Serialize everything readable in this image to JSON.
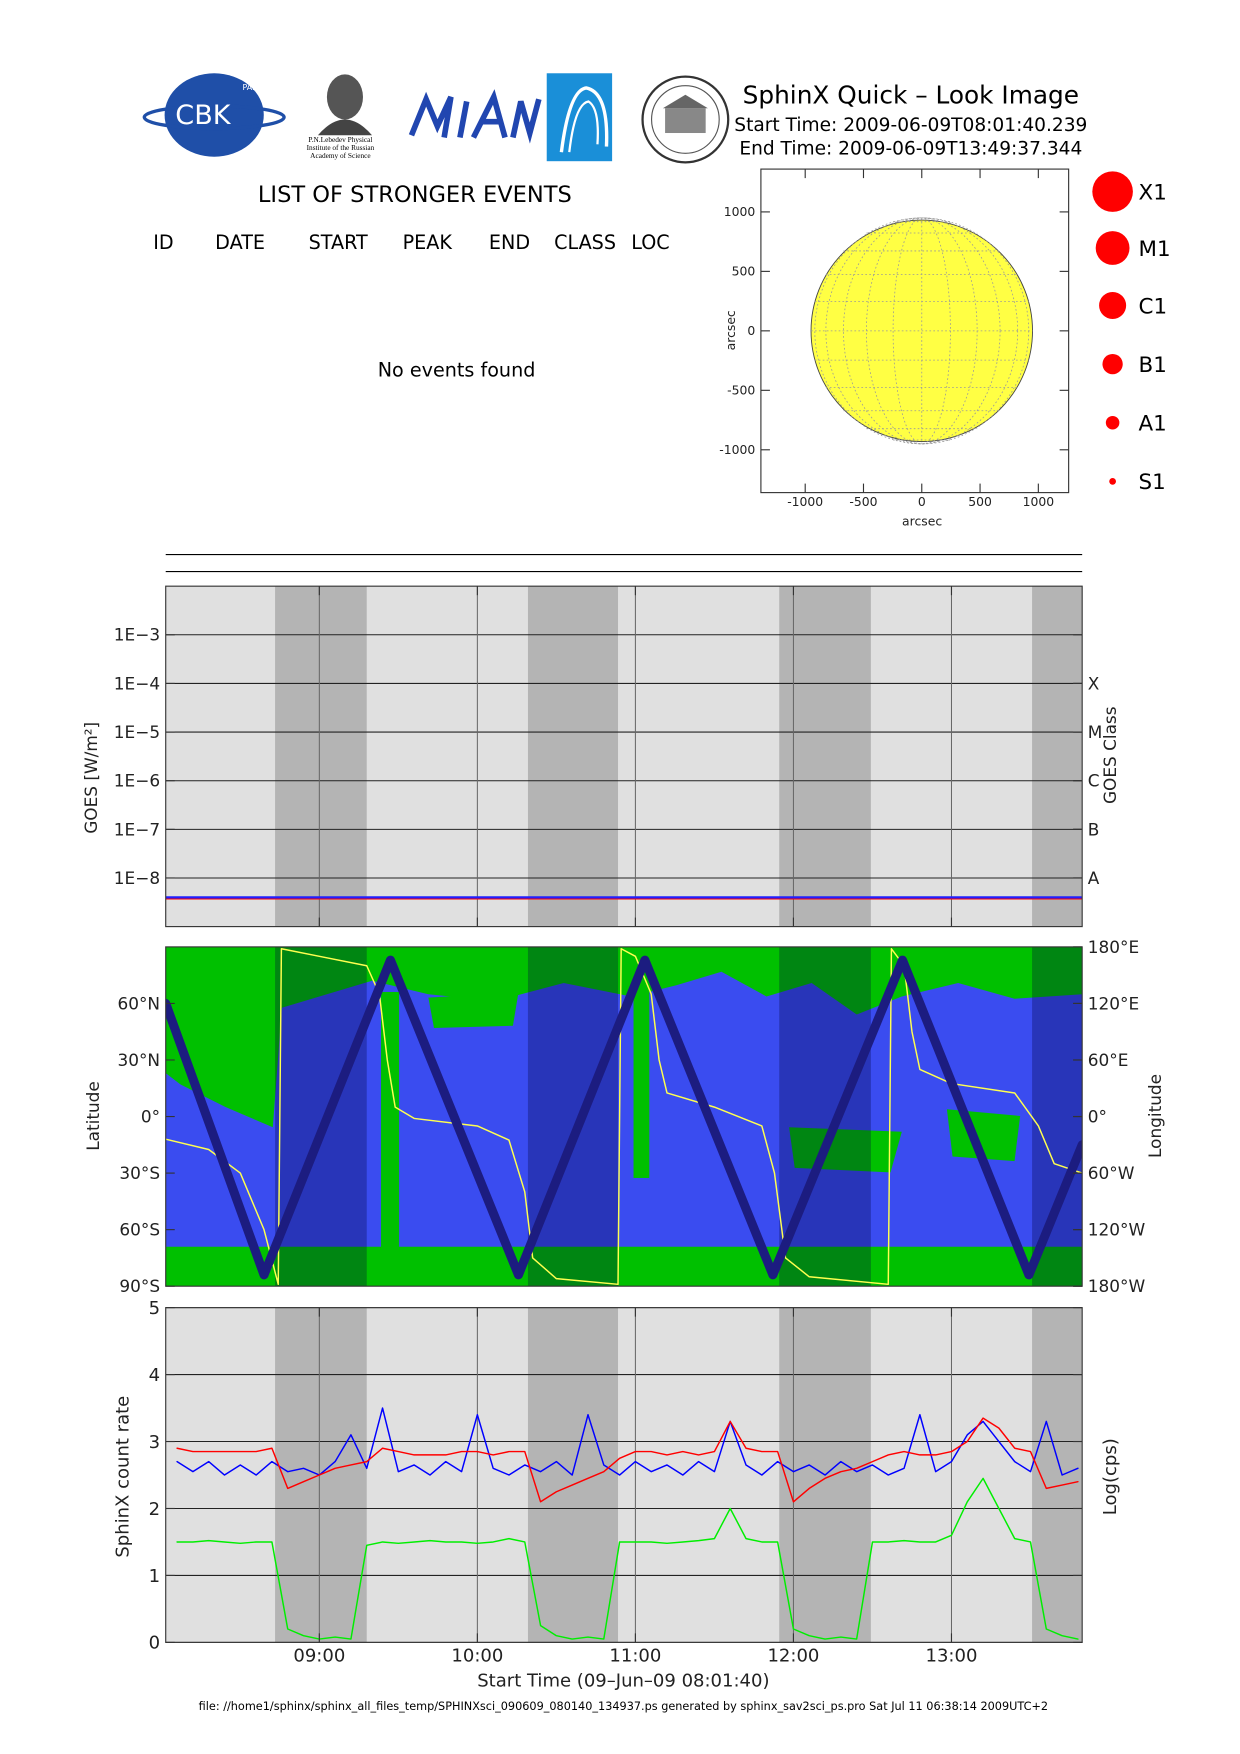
{
  "header": {
    "logo_cbk": "CBK",
    "logo_pan": "PAN",
    "logo_lebedev": [
      "P.N.Lebedev Physical",
      "Institute of the Russian",
      "Academy of Science"
    ],
    "title": "SphinX Quick – Look Image",
    "start_time": "Start Time: 2009-06-09T08:01:40.239",
    "end_time": "End Time: 2009-06-09T13:49:37.344"
  },
  "events": {
    "title": "LIST OF STRONGER EVENTS",
    "columns": [
      "ID",
      "DATE",
      "START",
      "PEAK",
      "END",
      "CLASS",
      "LOC"
    ],
    "message": "No events found"
  },
  "flare_classes": [
    "X1",
    "M1",
    "C1",
    "B1",
    "A1",
    "S1"
  ],
  "footer": "file: //home1/sphinx/sphinx_all_files_temp/SPHINXsci_090609_080140_134937.ps generated by sphinx_sav2sci_ps.pro Sat Jul 11 06:38:14 2009UTC+2",
  "chart_data": [
    {
      "type": "disk",
      "xlabel": "arcsec",
      "ylabel": "arcsec",
      "xlim": [
        -1380,
        1260
      ],
      "ylim": [
        -1360,
        1360
      ],
      "xticks": [
        -1000,
        -500,
        0,
        500,
        1000
      ],
      "yticks": [
        -1000,
        -500,
        0,
        500,
        1000
      ],
      "disk_radius": 950,
      "color": "#ffff44"
    },
    {
      "type": "line",
      "log_scale": true,
      "grid": true,
      "background": "#e0e0e0",
      "shade_color": "#b4b4b4",
      "ylabel": "GOES [W/m²]",
      "y2label": "GOES Class",
      "xlim": [
        8.028,
        13.827
      ],
      "xticks": [
        9,
        10,
        11,
        12,
        13
      ],
      "ylim": [
        1e-09,
        0.01
      ],
      "yticks": [
        {
          "value": 0.001,
          "label": "1E−3"
        },
        {
          "value": 0.0001,
          "label": "1E−4"
        },
        {
          "value": 1e-05,
          "label": "1E−5"
        },
        {
          "value": 1e-06,
          "label": "1E−6"
        },
        {
          "value": 1e-07,
          "label": "1E−7"
        },
        {
          "value": 1e-08,
          "label": "1E−8"
        }
      ],
      "y2lim": [
        1e-09,
        0.01
      ],
      "y2ticks": [
        {
          "value": 0.0001,
          "label": "X"
        },
        {
          "value": 1e-05,
          "label": "M"
        },
        {
          "value": 1e-06,
          "label": "C"
        },
        {
          "value": 1e-07,
          "label": "B"
        },
        {
          "value": 1e-08,
          "label": "A"
        }
      ],
      "shaded_intervals": [
        [
          8.72,
          9.3
        ],
        [
          10.32,
          10.89
        ],
        [
          11.91,
          12.49
        ],
        [
          13.51,
          13.827
        ]
      ],
      "x": [
        8.03,
        9,
        10,
        11,
        12,
        13,
        13.82
      ],
      "series": [
        {
          "color": "#ff0000",
          "values": [
            3.8e-09,
            3.8e-09,
            3.8e-09,
            3.8e-09,
            3.8e-09,
            3.8e-09,
            3.8e-09
          ]
        },
        {
          "color": "#2020ff",
          "values": [
            4e-09,
            4e-09,
            4e-09,
            4e-09,
            4e-09,
            4e-09,
            4e-09
          ]
        }
      ]
    },
    {
      "type": "line",
      "background": "#3a4cf0",
      "shade_color": "rgba(0,0,60,0.3)",
      "ylabel": "Latitude",
      "y2label": "Longitude",
      "xlim": [
        8.028,
        13.827
      ],
      "ylim": [
        -90,
        90
      ],
      "yticks": [
        {
          "value": 60,
          "label": "60°N"
        },
        {
          "value": 30,
          "label": "30°N"
        },
        {
          "value": 0,
          "label": "0°"
        },
        {
          "value": -30,
          "label": "30°S"
        },
        {
          "value": -60,
          "label": "60°S"
        },
        {
          "value": -90,
          "label": "90°S"
        }
      ],
      "y2lim": [
        -180,
        180
      ],
      "y2ticks": [
        {
          "value": 180,
          "label": "180°E"
        },
        {
          "value": 120,
          "label": "120°E"
        },
        {
          "value": 60,
          "label": "60°E"
        },
        {
          "value": 0,
          "label": "0°"
        },
        {
          "value": -60,
          "label": "60°W"
        },
        {
          "value": -120,
          "label": "120°W"
        },
        {
          "value": -180,
          "label": "180°W"
        }
      ],
      "shaded_intervals": [
        [
          8.72,
          9.3
        ],
        [
          10.32,
          10.89
        ],
        [
          11.91,
          12.49
        ],
        [
          13.51,
          13.827
        ]
      ],
      "series": [
        {
          "color": "#ffff50",
          "axis": "y2",
          "x": [
            8.028,
            8.3,
            8.5,
            8.65,
            8.74,
            8.76,
            9.0,
            9.3,
            9.38,
            9.43,
            9.48,
            9.6,
            10.0,
            10.2,
            10.3,
            10.35,
            10.5,
            10.89,
            10.91,
            11.0,
            11.1,
            11.15,
            11.2,
            11.5,
            11.8,
            11.88,
            11.95,
            12.1,
            12.6,
            12.62,
            12.7,
            12.75,
            12.8,
            13.0,
            13.4,
            13.55,
            13.65,
            13.827
          ],
          "values": [
            -24,
            -35,
            -60,
            -120,
            -178,
            178,
            170,
            160,
            130,
            60,
            10,
            -2,
            -10,
            -25,
            -80,
            -150,
            -172,
            -178,
            178,
            170,
            130,
            60,
            25,
            10,
            -10,
            -60,
            -150,
            -170,
            -178,
            178,
            160,
            90,
            50,
            35,
            25,
            -10,
            -50,
            -60
          ]
        },
        {
          "color": "#1c1c80",
          "x": [
            8.028,
            8.65,
            9.45,
            10.26,
            11.06,
            11.87,
            12.69,
            13.49,
            13.827
          ],
          "values": [
            60,
            -84,
            83,
            -84,
            83,
            -84,
            83,
            -84,
            -15
          ]
        }
      ]
    },
    {
      "type": "line",
      "grid": true,
      "background": "#e0e0e0",
      "shade_color": "#b4b4b4",
      "xlabel": "Start Time (09–Jun–09 08:01:40)",
      "ylabel": "SphinX count rate",
      "y2label": "Log(cps)",
      "xlim": [
        8.028,
        13.827
      ],
      "xticks": [
        {
          "value": 9,
          "label": "09:00"
        },
        {
          "value": 10,
          "label": "10:00"
        },
        {
          "value": 11,
          "label": "11:00"
        },
        {
          "value": 12,
          "label": "12:00"
        },
        {
          "value": 13,
          "label": "13:00"
        }
      ],
      "ylim": [
        0,
        5
      ],
      "yticks": [
        0,
        1,
        2,
        3,
        4,
        5
      ],
      "shaded_intervals": [
        [
          8.72,
          9.3
        ],
        [
          10.32,
          10.89
        ],
        [
          11.91,
          12.49
        ],
        [
          13.51,
          13.827
        ]
      ],
      "x": [
        8.1,
        8.2,
        8.3,
        8.4,
        8.5,
        8.6,
        8.7,
        8.8,
        8.9,
        9.0,
        9.1,
        9.2,
        9.3,
        9.4,
        9.5,
        9.6,
        9.7,
        9.8,
        9.9,
        10.0,
        10.1,
        10.2,
        10.3,
        10.4,
        10.5,
        10.6,
        10.7,
        10.8,
        10.9,
        11.0,
        11.1,
        11.2,
        11.3,
        11.4,
        11.5,
        11.6,
        11.7,
        11.8,
        11.9,
        12.0,
        12.1,
        12.2,
        12.3,
        12.4,
        12.5,
        12.6,
        12.7,
        12.8,
        12.9,
        13.0,
        13.1,
        13.2,
        13.3,
        13.4,
        13.5,
        13.6,
        13.7,
        13.8
      ],
      "series": [
        {
          "color": "#0000ff",
          "values": [
            2.7,
            2.55,
            2.7,
            2.5,
            2.65,
            2.5,
            2.7,
            2.55,
            2.6,
            2.5,
            2.7,
            3.1,
            2.6,
            3.5,
            2.55,
            2.65,
            2.5,
            2.7,
            2.55,
            3.4,
            2.6,
            2.5,
            2.65,
            2.55,
            2.7,
            2.5,
            3.4,
            2.65,
            2.5,
            2.7,
            2.55,
            2.65,
            2.5,
            2.7,
            2.55,
            3.3,
            2.65,
            2.5,
            2.7,
            2.55,
            2.65,
            2.5,
            2.7,
            2.55,
            2.65,
            2.5,
            2.6,
            3.4,
            2.55,
            2.7,
            3.1,
            3.3,
            3.0,
            2.7,
            2.55,
            3.3,
            2.5,
            2.6
          ]
        },
        {
          "color": "#ff0000",
          "values": [
            2.9,
            2.85,
            2.85,
            2.85,
            2.85,
            2.85,
            2.9,
            2.3,
            2.4,
            2.5,
            2.6,
            2.65,
            2.7,
            2.9,
            2.85,
            2.8,
            2.8,
            2.8,
            2.85,
            2.85,
            2.8,
            2.85,
            2.85,
            2.1,
            2.25,
            2.35,
            2.45,
            2.55,
            2.75,
            2.85,
            2.85,
            2.8,
            2.85,
            2.8,
            2.85,
            3.3,
            2.9,
            2.85,
            2.85,
            2.1,
            2.3,
            2.45,
            2.55,
            2.6,
            2.7,
            2.8,
            2.85,
            2.8,
            2.8,
            2.85,
            3.0,
            3.35,
            3.2,
            2.9,
            2.85,
            2.3,
            2.35,
            2.4
          ]
        },
        {
          "color": "#00ee00",
          "values": [
            1.5,
            1.5,
            1.52,
            1.5,
            1.48,
            1.5,
            1.5,
            0.2,
            0.1,
            0.05,
            0.08,
            0.05,
            1.45,
            1.5,
            1.48,
            1.5,
            1.52,
            1.5,
            1.5,
            1.48,
            1.5,
            1.55,
            1.5,
            0.25,
            0.1,
            0.05,
            0.08,
            0.05,
            1.5,
            1.5,
            1.5,
            1.48,
            1.5,
            1.52,
            1.55,
            2.0,
            1.55,
            1.5,
            1.5,
            0.2,
            0.1,
            0.05,
            0.08,
            0.05,
            1.5,
            1.5,
            1.52,
            1.5,
            1.5,
            1.6,
            2.1,
            2.45,
            2.0,
            1.55,
            1.5,
            0.2,
            0.1,
            0.05
          ]
        }
      ]
    }
  ]
}
